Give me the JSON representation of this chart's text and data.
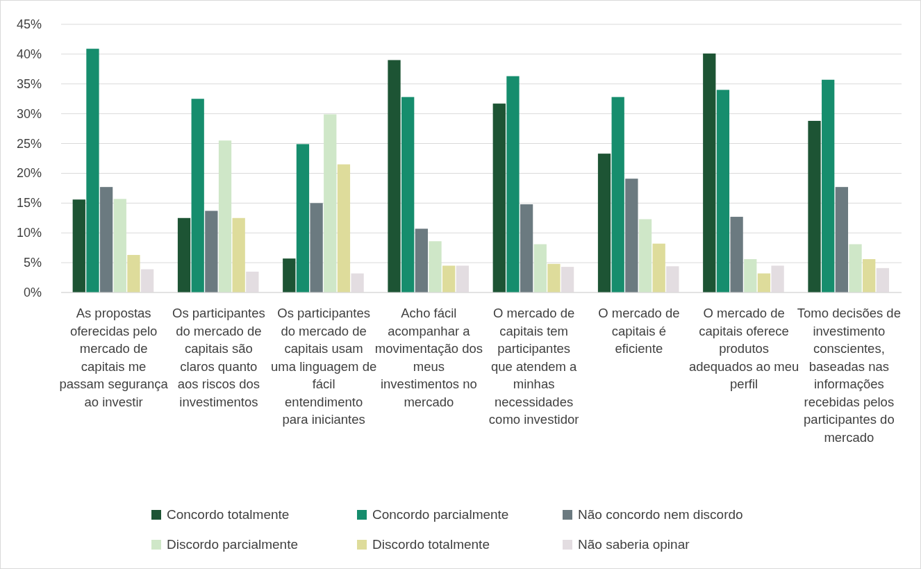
{
  "chart_data": {
    "type": "bar",
    "categories": [
      "As propostas oferecidas pelo mercado de capitais me passam segurança ao investir",
      "Os participantes do mercado de capitais são claros quanto aos riscos dos investimentos",
      "Os participantes do mercado de capitais usam uma linguagem de fácil entendimento para iniciantes",
      "Acho fácil acompanhar a movimentação dos meus investimentos no mercado",
      "O mercado de capitais tem participantes que atendem a minhas necessidades como investidor",
      "O mercado de capitais é eficiente",
      "O mercado de capitais oferece produtos adequados ao meu perfil",
      "Tomo decisões de investimento conscientes, baseadas nas informações recebidas pelos participantes do mercado"
    ],
    "series": [
      {
        "name": "Concordo totalmente",
        "color": "#1d5434",
        "values": [
          15.6,
          12.5,
          5.7,
          39.0,
          31.7,
          23.3,
          40.1,
          28.8
        ]
      },
      {
        "name": "Concordo parcialmente",
        "color": "#168d6d",
        "values": [
          40.9,
          32.5,
          24.9,
          32.8,
          36.3,
          32.8,
          34.0,
          35.7
        ]
      },
      {
        "name": "Não concordo nem discordo",
        "color": "#6b7a80",
        "values": [
          17.7,
          13.7,
          15.0,
          10.7,
          14.8,
          19.1,
          12.7,
          17.7
        ]
      },
      {
        "name": "Discordo parcialmente",
        "color": "#cfe7c8",
        "values": [
          15.7,
          25.5,
          29.9,
          8.6,
          8.1,
          12.3,
          5.6,
          8.1
        ]
      },
      {
        "name": "Discordo totalmente",
        "color": "#dedc9b",
        "values": [
          6.3,
          12.5,
          21.5,
          4.5,
          4.8,
          8.2,
          3.2,
          5.6
        ]
      },
      {
        "name": "Não saberia opinar",
        "color": "#e3dde1",
        "values": [
          3.9,
          3.5,
          3.2,
          4.5,
          4.3,
          4.4,
          4.5,
          4.1
        ]
      }
    ],
    "ylim": [
      0,
      45
    ],
    "yticks": [
      {
        "value": 0,
        "label": "0%"
      },
      {
        "value": 5,
        "label": "5%"
      },
      {
        "value": 10,
        "label": "10%"
      },
      {
        "value": 15,
        "label": "15%"
      },
      {
        "value": 20,
        "label": "20%"
      },
      {
        "value": 25,
        "label": "25%"
      },
      {
        "value": 30,
        "label": "30%"
      },
      {
        "value": 35,
        "label": "35%"
      },
      {
        "value": 40,
        "label": "40%"
      },
      {
        "value": 45,
        "label": "45%"
      }
    ],
    "grid": "y",
    "legend": "bottom"
  }
}
